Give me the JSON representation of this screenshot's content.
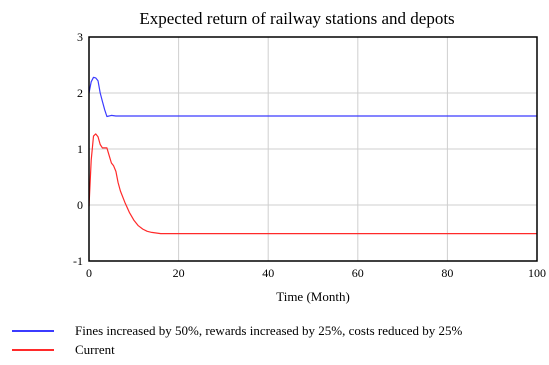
{
  "chart_data": {
    "type": "line",
    "title": "Expected return of railway stations and depots",
    "xlabel": "Time (Month)",
    "ylabel": "",
    "xlim": [
      0,
      100
    ],
    "ylim": [
      -1,
      3
    ],
    "xticks": [
      0,
      20,
      40,
      60,
      80,
      100
    ],
    "yticks": [
      -1,
      0,
      1,
      2,
      3
    ],
    "grid": true,
    "legend_position": "bottom",
    "series": [
      {
        "name": "Fines increased by 50%, rewards increased by 25%, costs reduced by 25%",
        "color": "#3b3bff",
        "x": [
          0,
          0.5,
          1,
          1.5,
          2,
          2.5,
          3,
          3.5,
          4,
          5,
          6,
          8,
          10,
          20,
          40,
          60,
          80,
          100
        ],
        "y": [
          2.0,
          2.2,
          2.28,
          2.27,
          2.22,
          2.0,
          1.85,
          1.7,
          1.58,
          1.6,
          1.59,
          1.59,
          1.59,
          1.59,
          1.59,
          1.59,
          1.59,
          1.59
        ]
      },
      {
        "name": "Current",
        "color": "#ff2a2a",
        "x": [
          0,
          0.5,
          1,
          1.5,
          2,
          2.5,
          3,
          3.5,
          4,
          4.5,
          5,
          5.5,
          6,
          6.5,
          7,
          8,
          9,
          10,
          11,
          12,
          13,
          14,
          15,
          16,
          18,
          20,
          30,
          40,
          60,
          80,
          100
        ],
        "y": [
          -0.02,
          0.8,
          1.23,
          1.27,
          1.22,
          1.08,
          1.02,
          1.02,
          1.02,
          0.88,
          0.75,
          0.7,
          0.6,
          0.4,
          0.25,
          0.05,
          -0.13,
          -0.27,
          -0.37,
          -0.43,
          -0.47,
          -0.49,
          -0.5,
          -0.51,
          -0.51,
          -0.51,
          -0.51,
          -0.51,
          -0.51,
          -0.51,
          -0.51
        ]
      }
    ]
  }
}
